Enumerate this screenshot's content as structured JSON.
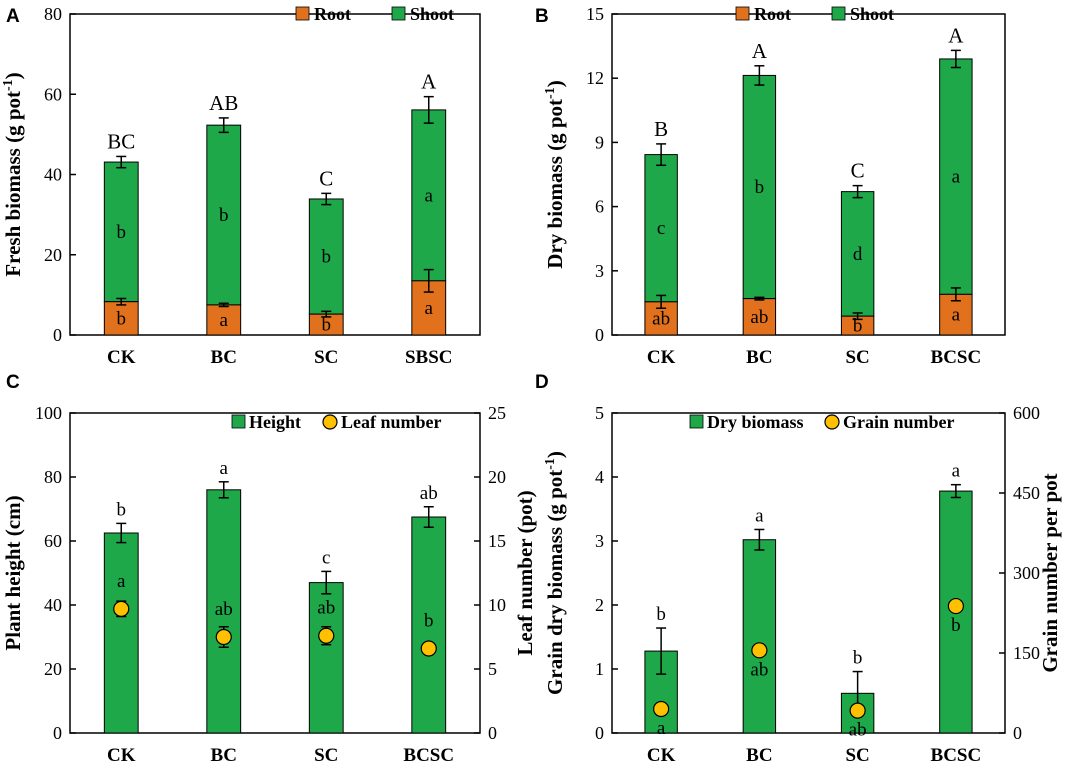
{
  "colors": {
    "root": "#E2711D",
    "shoot": "#1EA84A",
    "bar_green": "#1EA84A",
    "dot": "#FFC000",
    "axis": "#000000"
  },
  "chart_data": [
    {
      "panel": "A",
      "type": "stacked-bar",
      "categories": [
        "CK",
        "BC",
        "SC",
        "SBSC"
      ],
      "ylabel": "Fresh biomass (g pot⁻¹)",
      "ylim": [
        0,
        80
      ],
      "yticks": [
        0,
        20,
        40,
        60,
        80
      ],
      "legend": [
        "Root",
        "Shoot"
      ],
      "series": [
        {
          "name": "Root",
          "values": [
            8.3,
            7.5,
            5.2,
            13.5
          ],
          "errors": [
            0.8,
            0.4,
            0.7,
            2.8
          ],
          "letters": [
            "b",
            "a",
            "b",
            "a"
          ]
        },
        {
          "name": "Shoot",
          "values": [
            34.8,
            44.8,
            28.7,
            42.6
          ],
          "errors": [
            1.4,
            1.8,
            1.4,
            3.3
          ],
          "letters": [
            "b",
            "b",
            "b",
            "a"
          ]
        }
      ],
      "total_letters": [
        "BC",
        "AB",
        "C",
        "A"
      ]
    },
    {
      "panel": "B",
      "type": "stacked-bar",
      "categories": [
        "CK",
        "BC",
        "SC",
        "BCSC"
      ],
      "ylabel": "Dry biomass (g pot⁻¹)",
      "ylim": [
        0,
        15
      ],
      "yticks": [
        0,
        3,
        6,
        9,
        12,
        15
      ],
      "legend": [
        "Root",
        "Shoot"
      ],
      "series": [
        {
          "name": "Root",
          "values": [
            1.55,
            1.7,
            0.88,
            1.9
          ],
          "errors": [
            0.3,
            0.06,
            0.15,
            0.3
          ],
          "letters": [
            "ab",
            "ab",
            "b",
            "a"
          ]
        },
        {
          "name": "Shoot",
          "values": [
            6.88,
            10.43,
            5.82,
            11.0
          ],
          "errors": [
            0.5,
            0.45,
            0.28,
            0.4
          ],
          "letters": [
            "c",
            "b",
            "d",
            "a"
          ]
        }
      ],
      "total_letters": [
        "B",
        "A",
        "C",
        "A"
      ]
    },
    {
      "panel": "C",
      "type": "bar+scatter",
      "categories": [
        "CK",
        "BC",
        "SC",
        "BCSC"
      ],
      "ylabel": "Plant height (cm)",
      "y2label": "Leaf number (pot)",
      "ylim": [
        0,
        100
      ],
      "yticks": [
        0,
        20,
        40,
        60,
        80,
        100
      ],
      "y2lim": [
        0,
        25
      ],
      "y2ticks": [
        0,
        5,
        10,
        15,
        20,
        25
      ],
      "legend": [
        "Height",
        "Leaf number"
      ],
      "bars": {
        "name": "Height",
        "values": [
          62.5,
          76.0,
          47.0,
          67.5
        ],
        "errors": [
          3.0,
          2.5,
          3.5,
          3.2
        ],
        "letters": [
          "b",
          "a",
          "c",
          "ab"
        ]
      },
      "points": {
        "name": "Leaf number",
        "values": [
          9.7,
          7.5,
          7.6,
          6.6
        ],
        "errors": [
          0.6,
          0.8,
          0.7,
          0.2
        ],
        "letters": [
          "a",
          "ab",
          "ab",
          "b"
        ]
      }
    },
    {
      "panel": "D",
      "type": "bar+scatter",
      "categories": [
        "CK",
        "BC",
        "SC",
        "BCSC"
      ],
      "ylabel": "Grain dry biomass (g pot⁻¹)",
      "y2label": "Grain number per pot",
      "ylim": [
        0,
        5
      ],
      "yticks": [
        0,
        1,
        2,
        3,
        4,
        5
      ],
      "y2lim": [
        0,
        600
      ],
      "y2ticks": [
        0,
        150,
        300,
        450,
        600
      ],
      "legend": [
        "Dry biomass",
        "Grain number"
      ],
      "bars": {
        "name": "Dry biomass",
        "values": [
          1.28,
          3.02,
          0.62,
          3.78
        ],
        "errors": [
          0.36,
          0.16,
          0.34,
          0.1
        ],
        "letters": [
          "b",
          "a",
          "b",
          "a"
        ]
      },
      "points": {
        "name": "Grain number",
        "values": [
          45,
          155,
          42,
          238
        ],
        "errors": [
          0,
          0,
          0,
          0
        ],
        "letters": [
          "a",
          "ab",
          "ab",
          "b"
        ]
      }
    }
  ]
}
